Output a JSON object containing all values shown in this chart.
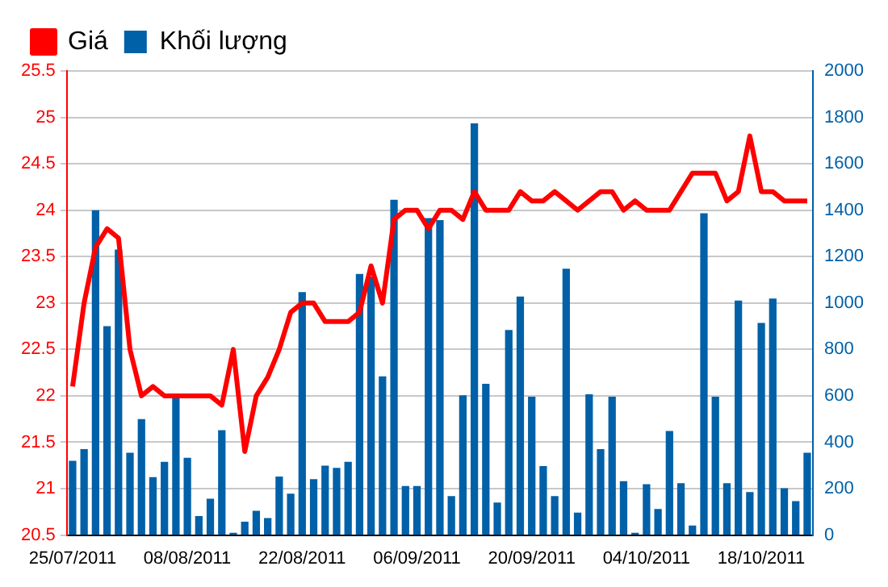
{
  "chart_data": {
    "type": "bar",
    "categories": [
      "25/07/2011",
      null,
      null,
      null,
      null,
      null,
      null,
      null,
      null,
      null,
      "08/08/2011",
      null,
      null,
      null,
      null,
      null,
      null,
      null,
      null,
      null,
      "22/08/2011",
      null,
      null,
      null,
      null,
      null,
      null,
      null,
      null,
      null,
      "06/09/2011",
      null,
      null,
      null,
      null,
      null,
      null,
      null,
      null,
      null,
      "20/09/2011",
      null,
      null,
      null,
      null,
      null,
      null,
      null,
      null,
      null,
      "04/10/2011",
      null,
      null,
      null,
      null,
      null,
      null,
      null,
      null,
      null,
      "18/10/2011",
      null,
      null,
      null,
      null
    ],
    "series": [
      {
        "name": "Giá",
        "type": "line",
        "color": "#ff0000",
        "values": [
          22.1,
          23.0,
          23.6,
          23.8,
          23.7,
          22.5,
          22.0,
          22.1,
          22.0,
          22.0,
          22.0,
          22.0,
          22.0,
          21.9,
          22.5,
          21.4,
          22.0,
          22.2,
          22.5,
          22.9,
          23.0,
          23.0,
          22.8,
          22.8,
          22.8,
          22.9,
          23.4,
          23.0,
          23.9,
          24.0,
          24.0,
          23.8,
          24.0,
          24.0,
          23.9,
          24.2,
          24.0,
          24.0,
          24.0,
          24.2,
          24.1,
          24.1,
          24.2,
          24.1,
          24.0,
          24.1,
          24.2,
          24.2,
          24.0,
          24.1,
          24.0,
          24.0,
          24.0,
          24.2,
          24.4,
          24.4,
          24.4,
          24.1,
          24.2,
          24.8,
          24.2,
          24.2,
          24.1,
          24.1,
          24.1
        ]
      },
      {
        "name": "Khối lượng",
        "axis": "y2",
        "color": "#0060a8",
        "values": [
          320,
          370,
          1400,
          900,
          1230,
          355,
          500,
          250,
          316,
          600,
          333,
          82,
          157,
          452,
          10,
          58,
          105,
          73,
          252,
          178,
          1047,
          241,
          299,
          290,
          316,
          1125,
          1114,
          684,
          1445,
          211,
          211,
          1366,
          1357,
          168,
          602,
          1774,
          652,
          140,
          884,
          1028,
          596,
          297,
          168,
          1148,
          97,
          607,
          370,
          596,
          232,
          10,
          219,
          112,
          449,
          224,
          41,
          1387,
          596,
          224,
          1011,
          185,
          914,
          1019,
          202,
          146,
          355
        ]
      }
    ],
    "ylim": [
      20.5,
      25.5
    ],
    "yticks": [
      20.5,
      21,
      21.5,
      22,
      22.5,
      23,
      23.5,
      24,
      24.5,
      25,
      25.5
    ],
    "y2lim": [
      0,
      2000
    ],
    "y2ticks": [
      0,
      200,
      400,
      600,
      800,
      1000,
      1200,
      1400,
      1600,
      1800,
      2000
    ],
    "grid": "y",
    "legend": "top left"
  }
}
